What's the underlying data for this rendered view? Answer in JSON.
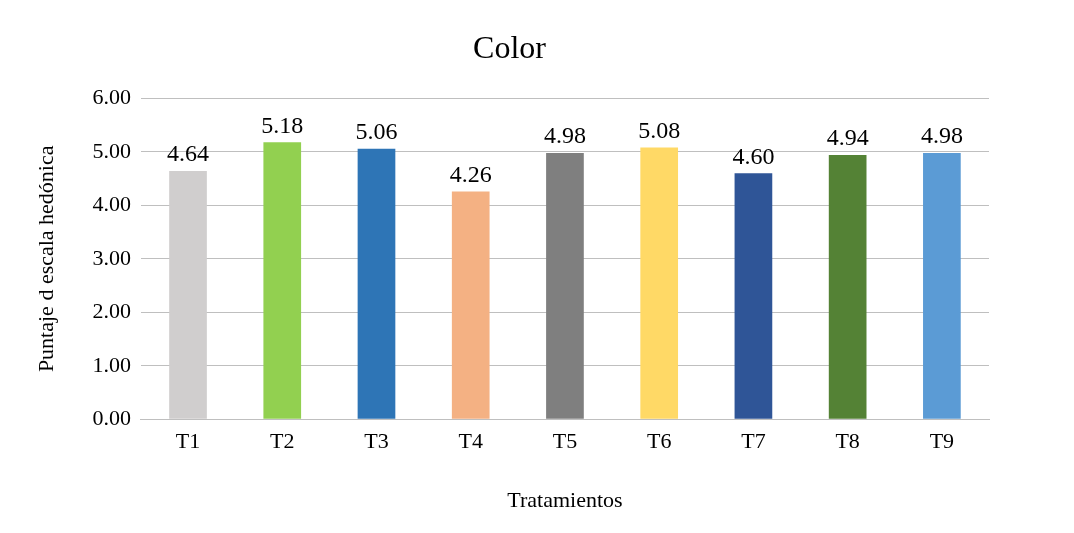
{
  "chart_data": {
    "type": "bar",
    "title": "Color",
    "xlabel": "Tratamientos",
    "ylabel": "Puntaje d escala hedónica",
    "categories": [
      "T1",
      "T2",
      "T3",
      "T4",
      "T5",
      "T6",
      "T7",
      "T8",
      "T9"
    ],
    "values": [
      4.64,
      5.18,
      5.06,
      4.26,
      4.98,
      5.08,
      4.6,
      4.94,
      4.98
    ],
    "colors": [
      "#d0cece",
      "#92d050",
      "#2e75b6",
      "#f4b183",
      "#7f7f7f",
      "#ffd966",
      "#2f5597",
      "#548235",
      "#5b9bd5"
    ],
    "value_labels": [
      "4.64",
      "5.18",
      "5.06",
      "4.26",
      "4.98",
      "5.08",
      "4.60",
      "4.94",
      "4.98"
    ],
    "ylim": [
      0,
      6
    ],
    "yticks": [
      {
        "value": 0,
        "label": "0.00"
      },
      {
        "value": 1,
        "label": "1.00"
      },
      {
        "value": 2,
        "label": "2.00"
      },
      {
        "value": 3,
        "label": "3.00"
      },
      {
        "value": 4,
        "label": "4.00"
      },
      {
        "value": 5,
        "label": "5.00"
      },
      {
        "value": 6,
        "label": "6.00"
      }
    ],
    "grid": "y",
    "legend": false
  }
}
